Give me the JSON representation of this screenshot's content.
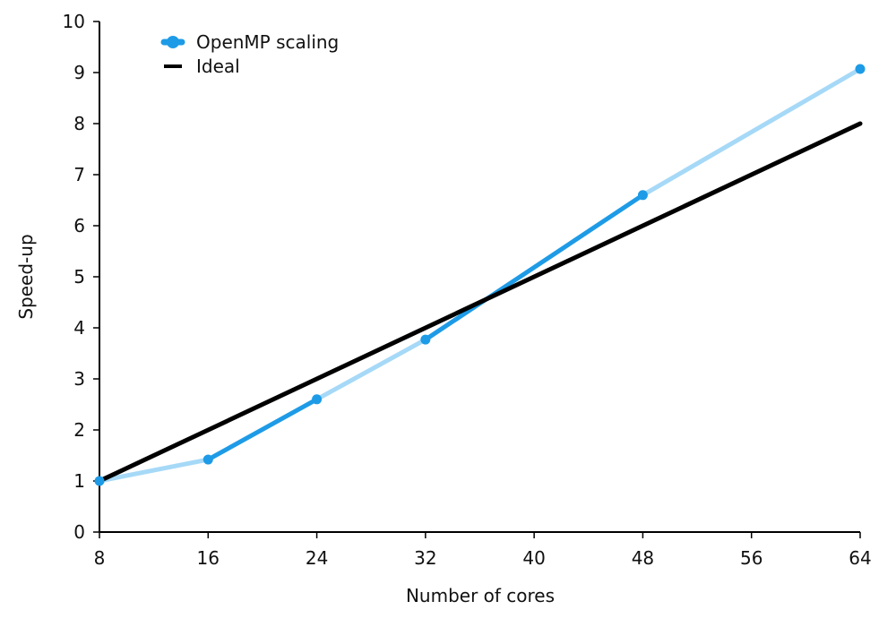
{
  "chart_data": {
    "type": "line",
    "title": "",
    "xlabel": "Number of cores",
    "ylabel": "Speed-up",
    "x_ticks": [
      8,
      16,
      24,
      32,
      40,
      48,
      56,
      64
    ],
    "y_ticks": [
      0,
      1,
      2,
      3,
      4,
      5,
      6,
      7,
      8,
      9,
      10
    ],
    "xlim": [
      8,
      64
    ],
    "ylim": [
      0,
      10
    ],
    "grid": false,
    "legend_position": "top-left",
    "series": [
      {
        "name": "OpenMP scaling",
        "color": "#1e9be6",
        "light_color": "#a6d9f7",
        "marker": "circle",
        "x": [
          8,
          16,
          24,
          32,
          48,
          64
        ],
        "y": [
          1.0,
          1.42,
          2.6,
          3.77,
          6.6,
          9.07
        ]
      },
      {
        "name": "Ideal",
        "color": "#000000",
        "x": [
          8,
          64
        ],
        "y": [
          1,
          8
        ]
      }
    ]
  }
}
